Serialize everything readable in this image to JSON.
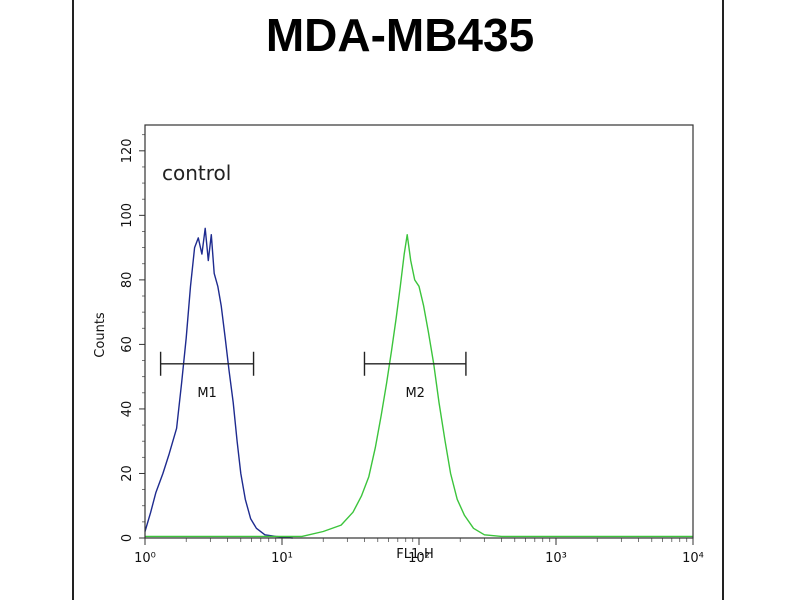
{
  "chart_data": {
    "type": "line",
    "title": "MDA-MB435",
    "xlabel": "FL1-H",
    "ylabel": "Counts",
    "x_scale": "log",
    "xlim": [
      1,
      10000
    ],
    "ylim": [
      0,
      128
    ],
    "y_ticks": [
      0,
      20,
      40,
      60,
      80,
      100,
      120
    ],
    "y_tick_labels": [
      "0",
      "20",
      "40",
      "60",
      "80",
      "100",
      "120"
    ],
    "x_ticks": [
      1,
      10,
      100,
      1000,
      10000
    ],
    "x_tick_labels": [
      "10⁰",
      "10¹",
      "10²",
      "10³",
      "10⁴"
    ],
    "annotation": "control",
    "series": [
      {
        "color": "#1e2b8f",
        "points": [
          [
            1.0,
            2
          ],
          [
            1.1,
            8
          ],
          [
            1.2,
            14
          ],
          [
            1.35,
            20
          ],
          [
            1.5,
            26
          ],
          [
            1.7,
            34
          ],
          [
            1.85,
            48
          ],
          [
            2.0,
            62
          ],
          [
            2.15,
            78
          ],
          [
            2.3,
            90
          ],
          [
            2.45,
            93
          ],
          [
            2.6,
            88
          ],
          [
            2.75,
            96
          ],
          [
            2.9,
            86
          ],
          [
            3.05,
            94
          ],
          [
            3.2,
            82
          ],
          [
            3.4,
            78
          ],
          [
            3.6,
            72
          ],
          [
            3.85,
            62
          ],
          [
            4.1,
            52
          ],
          [
            4.4,
            42
          ],
          [
            4.7,
            30
          ],
          [
            5.0,
            20
          ],
          [
            5.4,
            12
          ],
          [
            5.9,
            6
          ],
          [
            6.5,
            3
          ],
          [
            7.5,
            1
          ],
          [
            9.0,
            0.5
          ],
          [
            12,
            0
          ]
        ]
      },
      {
        "color": "#3cc43c",
        "points": [
          [
            1.0,
            0.5
          ],
          [
            10,
            0.5
          ],
          [
            14,
            0.5
          ],
          [
            20,
            2
          ],
          [
            27,
            4
          ],
          [
            33,
            8
          ],
          [
            38,
            13
          ],
          [
            43,
            19
          ],
          [
            48,
            28
          ],
          [
            53,
            38
          ],
          [
            58,
            48
          ],
          [
            63,
            58
          ],
          [
            68,
            68
          ],
          [
            73,
            78
          ],
          [
            78,
            88
          ],
          [
            82,
            94
          ],
          [
            87,
            86
          ],
          [
            93,
            80
          ],
          [
            100,
            78
          ],
          [
            108,
            72
          ],
          [
            117,
            64
          ],
          [
            128,
            54
          ],
          [
            140,
            42
          ],
          [
            155,
            30
          ],
          [
            170,
            20
          ],
          [
            190,
            12
          ],
          [
            215,
            7
          ],
          [
            250,
            3
          ],
          [
            300,
            1
          ],
          [
            400,
            0.5
          ],
          [
            10000,
            0.5
          ]
        ]
      }
    ],
    "markers": [
      {
        "label": "M1",
        "x_start": 1.3,
        "x_end": 6.2,
        "y": 54
      },
      {
        "label": "M2",
        "x_start": 40,
        "x_end": 220,
        "y": 54
      }
    ]
  }
}
